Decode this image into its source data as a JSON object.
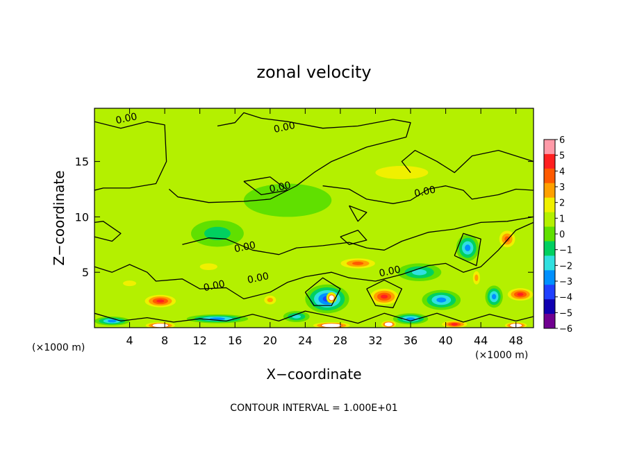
{
  "chart_data": {
    "type": "heatmap",
    "title": "zonal velocity",
    "xlabel": "X−coordinate",
    "ylabel": "Z−coordinate",
    "x_unit_left": "(×1000 m)",
    "x_unit_right": "(×1000 m)",
    "footer": "CONTOUR INTERVAL = 1.000E+01",
    "xlim": [
      0,
      50
    ],
    "ylim": [
      0,
      19.8
    ],
    "x_ticks": [
      4,
      8,
      12,
      16,
      20,
      24,
      28,
      32,
      36,
      40,
      44,
      48
    ],
    "x_tick_labels": [
      "4",
      "8",
      "12",
      "16",
      "20",
      "24",
      "28",
      "32",
      "36",
      "40",
      "44",
      "48"
    ],
    "y_ticks": [
      5,
      10,
      15
    ],
    "y_tick_labels": [
      "5",
      "10",
      "15"
    ],
    "colorbar": {
      "range": [
        -6,
        6
      ],
      "tick_labels": [
        "6",
        "5",
        "4",
        "3",
        "2",
        "1",
        "0",
        "−1",
        "−2",
        "−3",
        "−4",
        "−5",
        "−6"
      ],
      "tick_values": [
        6,
        5,
        4,
        3,
        2,
        1,
        0,
        -1,
        -2,
        -3,
        -4,
        -5,
        -6
      ],
      "band_colors": [
        "#ff9aa8",
        "#ff2020",
        "#ff5a00",
        "#ffa000",
        "#f0f000",
        "#b4f000",
        "#60e000",
        "#00d060",
        "#30e0e0",
        "#0090ff",
        "#2040ff",
        "#1000b0",
        "#700090"
      ]
    },
    "contour_label": "0.00",
    "contour_labels": [
      "0.00",
      "0.00",
      "0.00",
      "0.00",
      "0.00",
      "0.00",
      "0.00",
      "0.00"
    ],
    "background_value": 0.3,
    "features": [
      {
        "x": 7.5,
        "z": 2.4,
        "value": 4.5,
        "rx": 2.2,
        "rz": 0.7
      },
      {
        "x": 4.0,
        "z": 4.0,
        "value": 2.0,
        "rx": 1.5,
        "rz": 0.5
      },
      {
        "x": 13.0,
        "z": 5.5,
        "value": 1.5,
        "rx": 2.0,
        "rz": 0.6
      },
      {
        "x": 20.0,
        "z": 2.5,
        "value": 3.0,
        "rx": 1.0,
        "rz": 0.6
      },
      {
        "x": 26.5,
        "z": 2.6,
        "value": -4.6,
        "rx": 2.5,
        "rz": 1.3
      },
      {
        "x": 27.0,
        "z": 2.7,
        "value": 6.0,
        "rx": 0.6,
        "rz": 0.5
      },
      {
        "x": 30.0,
        "z": 5.8,
        "value": 4.0,
        "rx": 2.6,
        "rz": 0.6
      },
      {
        "x": 33.0,
        "z": 2.8,
        "value": 5.0,
        "rx": 2.0,
        "rz": 0.9
      },
      {
        "x": 37.0,
        "z": 5.0,
        "value": -2.5,
        "rx": 2.5,
        "rz": 0.8
      },
      {
        "x": 39.5,
        "z": 2.5,
        "value": -4.0,
        "rx": 2.2,
        "rz": 0.9
      },
      {
        "x": 42.5,
        "z": 7.2,
        "value": -4.0,
        "rx": 1.3,
        "rz": 1.2
      },
      {
        "x": 43.5,
        "z": 4.5,
        "value": 3.0,
        "rx": 0.6,
        "rz": 0.9
      },
      {
        "x": 45.5,
        "z": 2.8,
        "value": -3.5,
        "rx": 1.0,
        "rz": 1.0
      },
      {
        "x": 48.5,
        "z": 3.0,
        "value": 4.5,
        "rx": 1.8,
        "rz": 0.7
      },
      {
        "x": 47.0,
        "z": 8.0,
        "value": 3.5,
        "rx": 1.2,
        "rz": 1.0
      },
      {
        "x": 14.0,
        "z": 8.5,
        "value": -1.8,
        "rx": 3.0,
        "rz": 1.2
      },
      {
        "x": 22.0,
        "z": 11.5,
        "value": -0.8,
        "rx": 5.0,
        "rz": 1.5
      },
      {
        "x": 7.5,
        "z": 0.2,
        "value": 6.0,
        "rx": 2.0,
        "rz": 0.35
      },
      {
        "x": 27.0,
        "z": 0.2,
        "value": 6.0,
        "rx": 2.5,
        "rz": 0.35
      },
      {
        "x": 33.5,
        "z": 0.3,
        "value": 6.0,
        "rx": 1.0,
        "rz": 0.4
      },
      {
        "x": 41.0,
        "z": 0.3,
        "value": 5.0,
        "rx": 1.8,
        "rz": 0.4
      },
      {
        "x": 48.0,
        "z": 0.2,
        "value": 6.0,
        "rx": 1.5,
        "rz": 0.35
      },
      {
        "x": 14.0,
        "z": 0.8,
        "value": -4.0,
        "rx": 3.5,
        "rz": 0.4
      },
      {
        "x": 2.0,
        "z": 0.6,
        "value": -4.0,
        "rx": 2.0,
        "rz": 0.4
      },
      {
        "x": 36.0,
        "z": 0.8,
        "value": -4.0,
        "rx": 2.0,
        "rz": 0.5
      },
      {
        "x": 23.0,
        "z": 1.0,
        "value": -3.0,
        "rx": 1.5,
        "rz": 0.5
      },
      {
        "x": 35.0,
        "z": 14.0,
        "value": 1.5,
        "rx": 6.0,
        "rz": 1.2
      },
      {
        "x": 43.0,
        "z": 17.0,
        "value": 1.2,
        "rx": 5.0,
        "rz": 1.5
      }
    ]
  }
}
